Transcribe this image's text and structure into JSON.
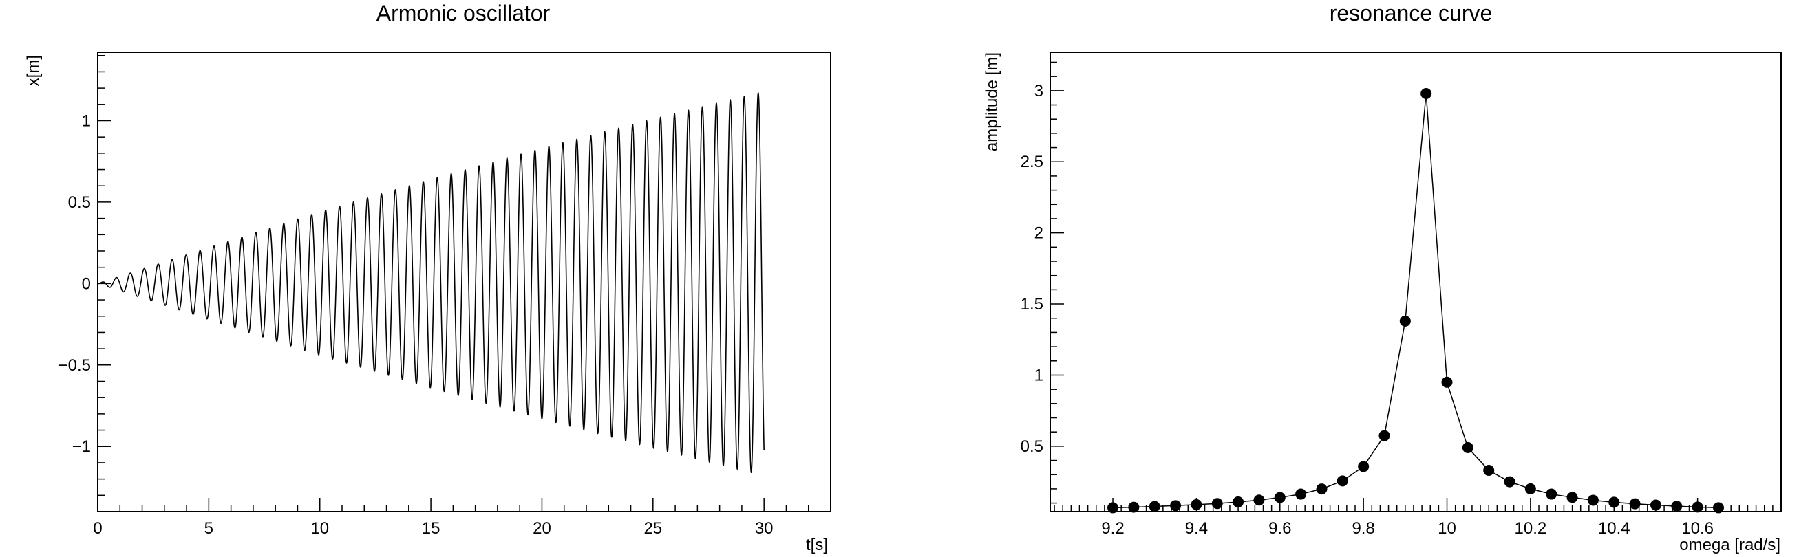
{
  "chart_data": [
    {
      "type": "line",
      "title": "Armonic oscillator",
      "xlabel": "t[s]",
      "ylabel": "x[m]",
      "xlim": [
        0,
        33
      ],
      "ylim": [
        -1.4,
        1.42
      ],
      "xticks": [
        "0",
        "5",
        "10",
        "15",
        "20",
        "25",
        "30"
      ],
      "yticks": [
        "−1",
        "−0.5",
        "0",
        "0.5",
        "1"
      ],
      "grid": false,
      "series": [
        {
          "omega": 10.0,
          "t_end": 30.0,
          "envelope_t": [
            0,
            5,
            10,
            15,
            20,
            25,
            30
          ],
          "envelope_amplitude": [
            0.0,
            0.22,
            0.44,
            0.64,
            0.83,
            1.01,
            1.18
          ],
          "color": "#000000"
        }
      ]
    },
    {
      "type": "scatter",
      "title": "resonance curve",
      "xlabel": "omega [rad/s]",
      "ylabel": "amplitude [m]",
      "xlim": [
        9.05,
        10.8
      ],
      "ylim": [
        0.04,
        3.27
      ],
      "xticks": [
        "9.2",
        "9.4",
        "9.6",
        "9.8",
        "10",
        "10.2",
        "10.4",
        "10.6"
      ],
      "yticks": [
        "0.5",
        "1",
        "1.5",
        "2",
        "2.5",
        "3"
      ],
      "grid": false,
      "connected": true,
      "x": [
        9.2,
        9.25,
        9.3,
        9.35,
        9.4,
        9.45,
        9.5,
        9.55,
        9.6,
        9.65,
        9.7,
        9.75,
        9.8,
        9.85,
        9.9,
        9.95,
        10.0,
        10.05,
        10.1,
        10.15,
        10.2,
        10.25,
        10.3,
        10.35,
        10.4,
        10.45,
        10.5,
        10.55,
        10.6,
        10.65
      ],
      "series": [
        {
          "values": [
            0.067,
            0.071,
            0.076,
            0.082,
            0.089,
            0.097,
            0.108,
            0.121,
            0.139,
            0.163,
            0.199,
            0.256,
            0.357,
            0.574,
            1.38,
            2.98,
            0.95,
            0.49,
            0.33,
            0.25,
            0.2,
            0.163,
            0.14,
            0.12,
            0.106,
            0.095,
            0.086,
            0.078,
            0.072,
            0.067
          ],
          "color": "#000000"
        }
      ]
    }
  ]
}
